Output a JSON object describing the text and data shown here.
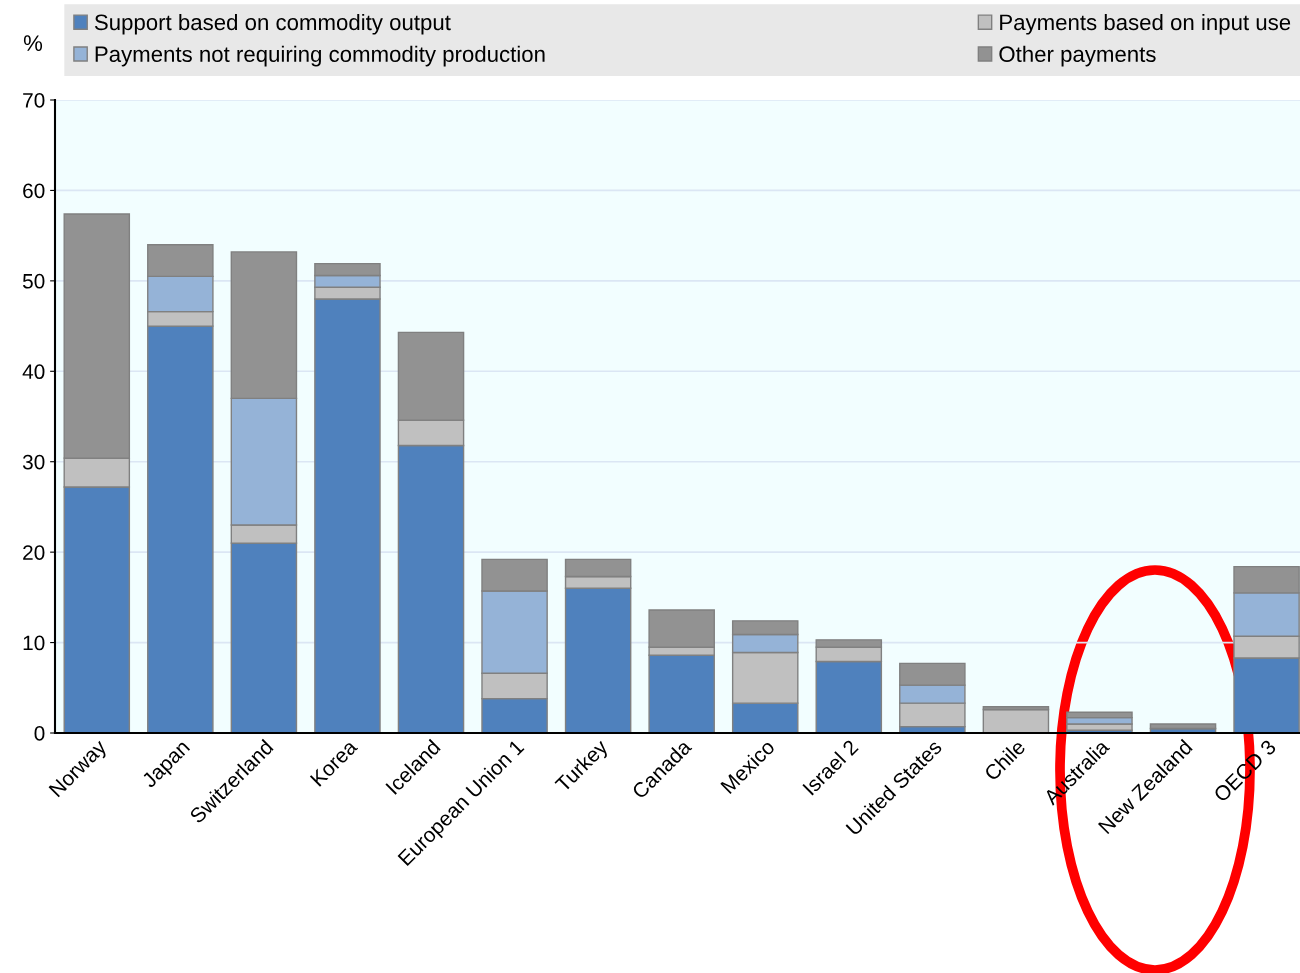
{
  "chart_data": {
    "type": "bar",
    "stacked": true,
    "ylabel": "%",
    "categories": [
      "Norway",
      "Japan",
      "Switzerland",
      "Korea",
      "Iceland",
      "European Union 1",
      "Turkey",
      "Canada",
      "Mexico",
      "Israel 2",
      "United States",
      "Chile",
      "Australia",
      "New Zealand",
      "OECD 3"
    ],
    "series": [
      {
        "name": "Support based on commodity output",
        "color": "#4f81bd",
        "values": [
          27.2,
          45.0,
          21.0,
          48.0,
          31.8,
          3.8,
          16.0,
          8.6,
          3.3,
          7.9,
          0.7,
          0,
          0.3,
          0.5,
          8.3
        ]
      },
      {
        "name": "Payments based on input use",
        "color": "#c0c0c0",
        "values": [
          3.2,
          1.6,
          2.0,
          1.3,
          2.8,
          2.8,
          1.3,
          0.9,
          5.6,
          1.6,
          2.6,
          2.6,
          0.7,
          0,
          2.4
        ]
      },
      {
        "name": "Payments not requiring commodity production",
        "color": "#95b3d7",
        "values": [
          0,
          3.9,
          14.0,
          1.3,
          0,
          9.1,
          0,
          0,
          2.0,
          0,
          2.0,
          0,
          0.7,
          0,
          4.8
        ]
      },
      {
        "name": "Other payments",
        "color": "#929292",
        "values": [
          27.0,
          3.5,
          16.2,
          1.3,
          9.7,
          3.5,
          1.9,
          4.1,
          1.5,
          0.8,
          2.4,
          0.3,
          0.6,
          0.5,
          2.9
        ]
      }
    ],
    "ylim": [
      0,
      70
    ],
    "yticks": [
      0,
      10,
      20,
      30,
      40,
      50,
      60,
      70
    ],
    "grid": "y",
    "legend": "top"
  }
}
